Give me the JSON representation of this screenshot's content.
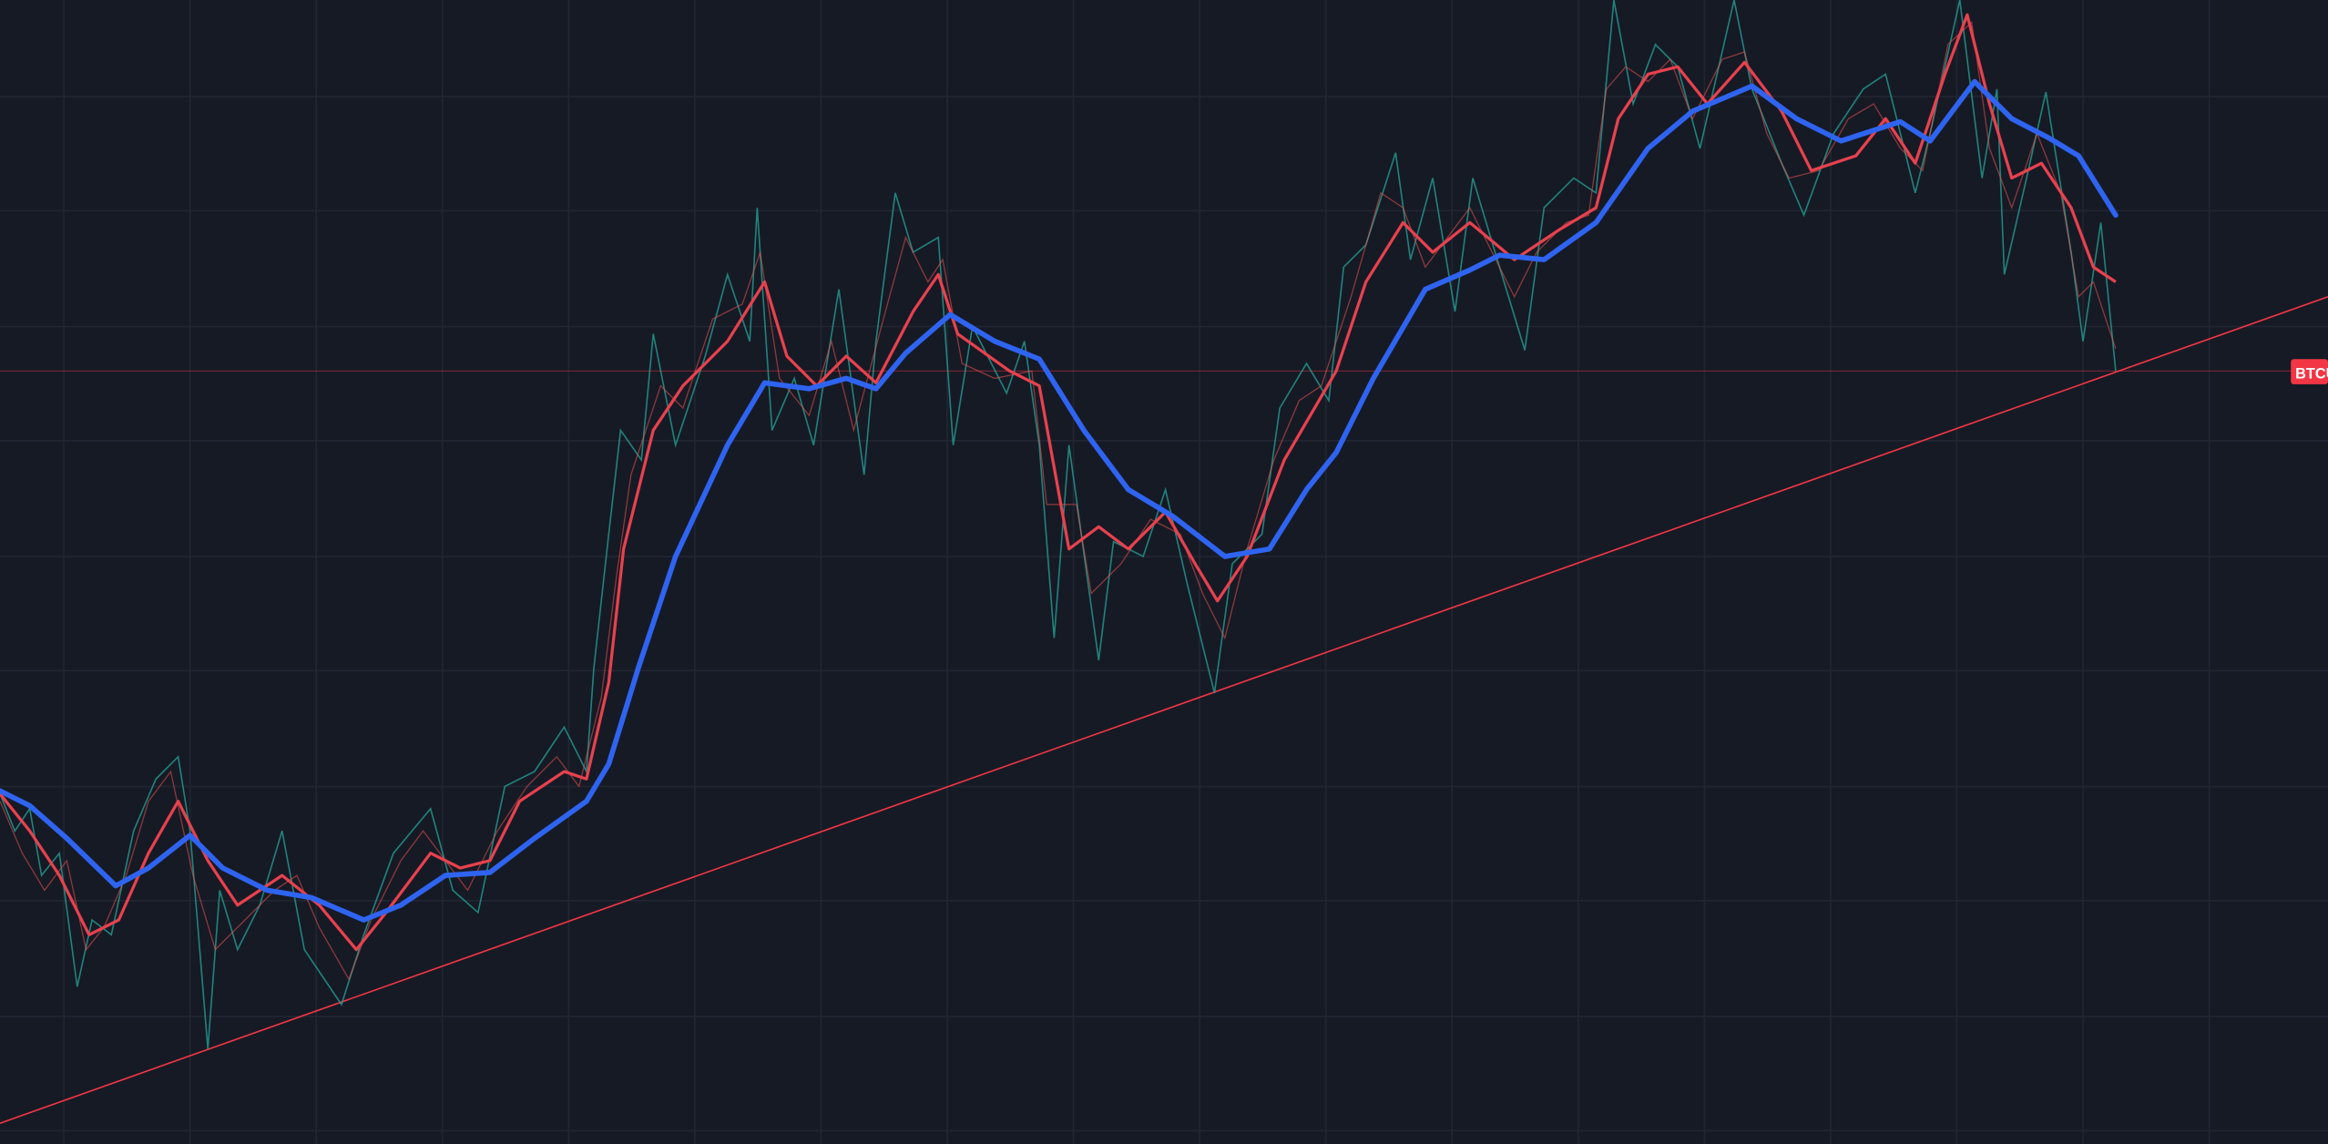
{
  "price_label": "BTCU"
}
